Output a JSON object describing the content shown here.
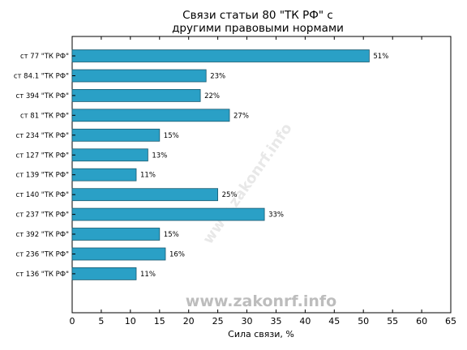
{
  "chart_data": {
    "type": "bar",
    "orientation": "horizontal",
    "title_lines": [
      "Связи статьи 80 \"ТК РФ\" с",
      "другими правовыми нормами"
    ],
    "xlabel": "Сила связи, %",
    "ylabel": "",
    "xlim": [
      0,
      65
    ],
    "xticks": [
      0,
      5,
      10,
      15,
      20,
      25,
      30,
      35,
      40,
      45,
      50,
      55,
      60,
      65
    ],
    "grid": false,
    "categories": [
      "ст 77 \"ТК РФ\"",
      "ст 84.1 \"ТК РФ\"",
      "ст 394 \"ТК РФ\"",
      "ст 81 \"ТК РФ\"",
      "ст 234 \"ТК РФ\"",
      "ст 127 \"ТК РФ\"",
      "ст 139 \"ТК РФ\"",
      "ст 140 \"ТК РФ\"",
      "ст 237 \"ТК РФ\"",
      "ст 392 \"ТК РФ\"",
      "ст 236 \"ТК РФ\"",
      "ст 136 \"ТК РФ\""
    ],
    "values": [
      51,
      23,
      22,
      27,
      15,
      13,
      11,
      25,
      33,
      15,
      16,
      11
    ],
    "data_labels": [
      "51%",
      "23%",
      "22%",
      "27%",
      "15%",
      "13%",
      "11%",
      "25%",
      "33%",
      "15%",
      "16%",
      "11%"
    ],
    "bar_color": "#2aa0c6",
    "bar_edge_color": "#1a5a70"
  },
  "watermark": "www.zakonrf.info"
}
